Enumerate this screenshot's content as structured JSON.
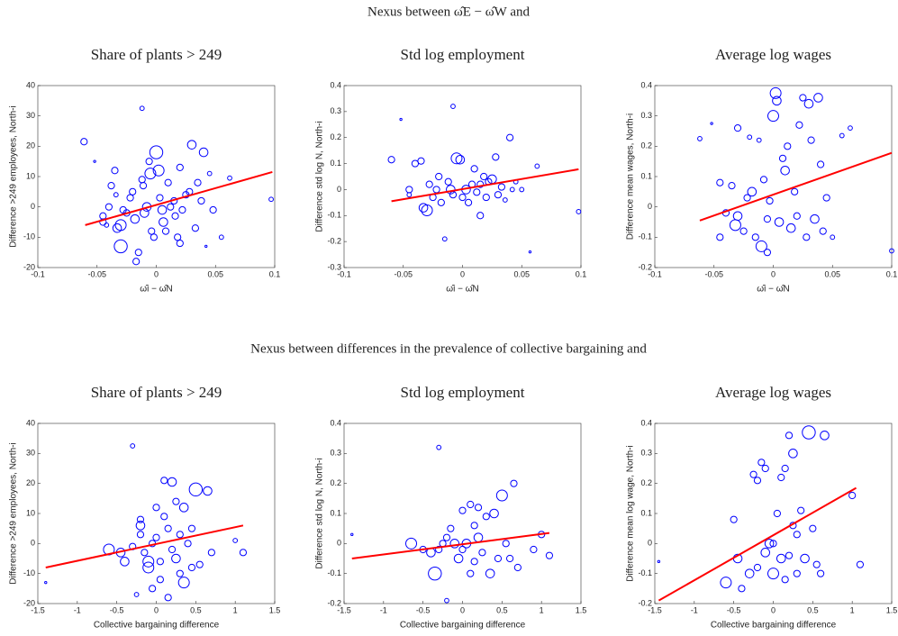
{
  "section_titles": [
    "Nexus between ω̂E − ω̂W and",
    "Nexus between differences in the prevalence of collective bargaining and"
  ],
  "chart_data": [
    {
      "type": "scatter",
      "title": "Share of plants > 249",
      "xlabel": "ω̂i − ω̂N",
      "ylabel": "Difference >249 employees, North-i",
      "color": "#0000ff",
      "x": [
        -0.061,
        -0.052,
        -0.012,
        -0.045,
        -0.045,
        -0.042,
        -0.038,
        -0.035,
        -0.034,
        -0.033,
        -0.03,
        -0.03,
        -0.028,
        -0.025,
        -0.022,
        -0.02,
        -0.018,
        -0.017,
        -0.015,
        -0.012,
        -0.011,
        -0.01,
        -0.008,
        -0.006,
        -0.005,
        -0.004,
        -0.002,
        0,
        0.002,
        0.003,
        0.005,
        0.006,
        0.008,
        0.01,
        0.012,
        0.015,
        0.016,
        0.018,
        0.02,
        0.022,
        0.025,
        0.028,
        0.03,
        0.033,
        0.035,
        0.038,
        0.04,
        0.042,
        0.045,
        0.048,
        0.055,
        0.062,
        0.097,
        0.02,
        -0.04
      ],
      "values": [
        21.5,
        15,
        32.5,
        -3,
        -5,
        -6,
        7,
        12,
        4,
        -7,
        -6,
        -13,
        -1,
        -2,
        3,
        5,
        -4,
        -18,
        -15,
        9,
        7,
        -2,
        0,
        15,
        11,
        -8,
        -10,
        18,
        12,
        3,
        -1,
        -5,
        -8,
        8,
        0,
        2,
        -3,
        -10,
        13,
        -1,
        4,
        5,
        20.5,
        -7,
        8,
        2,
        18,
        -13,
        11,
        -1,
        -10,
        9.5,
        2.5,
        -12,
        0
      ],
      "sizes": [
        3,
        1,
        2,
        3,
        3,
        2,
        3,
        3,
        2,
        4,
        5,
        6,
        3,
        3,
        3,
        3,
        4,
        3,
        3,
        3,
        3,
        4,
        4,
        3,
        5,
        3,
        3,
        6,
        5,
        3,
        4,
        4,
        3,
        3,
        3,
        3,
        3,
        3,
        3,
        3,
        3,
        3,
        4,
        3,
        3,
        3,
        4,
        1,
        2,
        3,
        2,
        2,
        2,
        3,
        3
      ],
      "fit_line": {
        "x": [
          -0.06,
          0.098
        ],
        "values": [
          -6,
          11.5
        ],
        "color": "#ff0000"
      },
      "xlim": [
        -0.1,
        0.1
      ],
      "xticks": [
        -0.1,
        -0.05,
        0,
        0.05,
        0.1
      ],
      "ylim": [
        -20,
        40
      ],
      "yticks": [
        -20,
        -10,
        0,
        10,
        20,
        30,
        40
      ]
    },
    {
      "type": "scatter",
      "title": "Std log employment",
      "xlabel": "ω̂i − ω̂N",
      "ylabel": "Difference std log N, North-i",
      "color": "#0000ff",
      "x": [
        -0.06,
        -0.052,
        -0.008,
        -0.045,
        -0.04,
        -0.035,
        -0.033,
        -0.03,
        -0.028,
        -0.025,
        -0.022,
        -0.02,
        -0.018,
        -0.015,
        -0.012,
        -0.01,
        -0.008,
        -0.005,
        -0.002,
        0,
        0.003,
        0.005,
        0.008,
        0.01,
        0.012,
        0.015,
        0.018,
        0.02,
        0.022,
        0.025,
        0.028,
        0.03,
        0.033,
        0.036,
        0.04,
        0.042,
        0.045,
        0.05,
        0.057,
        0.063,
        0.098,
        -0.045,
        0.015
      ],
      "values": [
        0.115,
        0.27,
        0.32,
        -0.02,
        0.1,
        0.11,
        -0.07,
        -0.08,
        0.02,
        -0.03,
        0,
        0.05,
        -0.05,
        -0.19,
        0.03,
        0,
        -0.02,
        0.12,
        0.115,
        -0.03,
        0,
        -0.05,
        0.02,
        0.08,
        -0.01,
        0.02,
        0.05,
        -0.03,
        0.03,
        0.04,
        0.125,
        -0.02,
        0.01,
        -0.04,
        0.2,
        0,
        0.03,
        0,
        -0.24,
        0.09,
        -0.085,
        0,
        -0.1
      ],
      "sizes": [
        3,
        1,
        2,
        2,
        3,
        3,
        4,
        5,
        3,
        3,
        3,
        3,
        3,
        2,
        3,
        4,
        3,
        5,
        4,
        3,
        4,
        3,
        3,
        3,
        3,
        3,
        3,
        3,
        3,
        4,
        3,
        3,
        3,
        2,
        3,
        2,
        2,
        2,
        1,
        2,
        2,
        3,
        3
      ],
      "fit_line": {
        "x": [
          -0.06,
          0.098
        ],
        "values": [
          -0.045,
          0.078
        ],
        "color": "#ff0000"
      },
      "xlim": [
        -0.1,
        0.1
      ],
      "xticks": [
        -0.1,
        -0.05,
        0,
        0.05,
        0.1
      ],
      "ylim": [
        -0.3,
        0.4
      ],
      "yticks": [
        -0.3,
        -0.2,
        -0.1,
        0,
        0.1,
        0.2,
        0.3,
        0.4
      ]
    },
    {
      "type": "scatter",
      "title": "Average log wages",
      "xlabel": "ω̂i − ω̂N",
      "ylabel": "Difference mean wages, North-i",
      "color": "#0000ff",
      "x": [
        -0.062,
        -0.052,
        -0.045,
        -0.045,
        -0.04,
        -0.035,
        -0.032,
        -0.03,
        -0.03,
        -0.025,
        -0.022,
        -0.02,
        -0.018,
        -0.015,
        -0.012,
        -0.01,
        -0.008,
        -0.005,
        -0.003,
        0,
        0.002,
        0.003,
        0.005,
        0.008,
        0.01,
        0.012,
        0.015,
        0.018,
        0.02,
        0.022,
        0.025,
        0.028,
        0.03,
        0.032,
        0.035,
        0.038,
        0.04,
        0.042,
        0.045,
        0.05,
        0.058,
        0.065,
        0.1,
        -0.005
      ],
      "values": [
        0.225,
        0.275,
        0.08,
        -0.1,
        -0.02,
        0.07,
        -0.06,
        -0.03,
        0.26,
        -0.08,
        0.03,
        0.23,
        0.05,
        -0.1,
        0.22,
        -0.13,
        0.09,
        -0.04,
        0.02,
        0.3,
        0.375,
        0.35,
        -0.05,
        0.16,
        0.12,
        0.2,
        -0.07,
        0.05,
        -0.03,
        0.27,
        0.36,
        -0.1,
        0.34,
        0.22,
        -0.04,
        0.36,
        0.14,
        -0.08,
        0.03,
        -0.1,
        0.235,
        0.26,
        -0.145,
        -0.15
      ],
      "sizes": [
        2,
        1,
        3,
        3,
        3,
        3,
        5,
        4,
        3,
        3,
        3,
        2,
        4,
        3,
        2,
        5,
        3,
        3,
        3,
        5,
        5,
        4,
        4,
        3,
        4,
        3,
        4,
        3,
        3,
        3,
        3,
        3,
        4,
        3,
        4,
        4,
        3,
        3,
        3,
        2,
        2,
        2,
        2,
        3
      ],
      "fit_line": {
        "x": [
          -0.062,
          0.1
        ],
        "values": [
          -0.045,
          0.178
        ],
        "color": "#ff0000"
      },
      "xlim": [
        -0.1,
        0.1
      ],
      "xticks": [
        -0.1,
        -0.05,
        0,
        0.05,
        0.1
      ],
      "ylim": [
        -0.2,
        0.4
      ],
      "yticks": [
        -0.2,
        -0.1,
        0,
        0.1,
        0.2,
        0.3,
        0.4
      ]
    },
    {
      "type": "scatter",
      "title": "Share of plants > 249",
      "xlabel": "Collective bargaining difference",
      "ylabel": "Difference >249 employees, North-i",
      "color": "#0000ff",
      "x": [
        -1.4,
        -0.3,
        -0.6,
        -0.45,
        -0.4,
        -0.3,
        -0.2,
        -0.2,
        -0.15,
        -0.1,
        -0.1,
        -0.05,
        0,
        0,
        0.05,
        0.1,
        0.1,
        0.15,
        0.2,
        0.2,
        0.25,
        0.25,
        0.3,
        0.35,
        0.35,
        0.4,
        0.45,
        0.5,
        0.55,
        0.65,
        0.7,
        1,
        1.1,
        -0.25,
        0.15,
        -0.05,
        0.3,
        0.45,
        -0.2,
        0.05
      ],
      "values": [
        -13,
        32.5,
        -2,
        -3,
        -6,
        -1,
        3,
        6,
        -3,
        -6,
        -8,
        0,
        2,
        12,
        -12,
        9,
        21,
        5,
        20.5,
        -2,
        14,
        -5,
        -10,
        -13,
        12,
        0,
        -8,
        18,
        -7,
        17.5,
        -3,
        1,
        -3,
        -17,
        -18,
        -15,
        3,
        5,
        8,
        -6
      ],
      "sizes": [
        1,
        2,
        5,
        4,
        4,
        3,
        3,
        4,
        3,
        5,
        5,
        3,
        3,
        3,
        3,
        3,
        3,
        3,
        4,
        3,
        3,
        4,
        3,
        5,
        4,
        3,
        3,
        6,
        3,
        4,
        3,
        2,
        3,
        2,
        3,
        3,
        3,
        3,
        3,
        3
      ],
      "fit_line": {
        "x": [
          -1.4,
          1.1
        ],
        "values": [
          -8,
          6
        ],
        "color": "#ff0000"
      },
      "xlim": [
        -1.5,
        1.5
      ],
      "xticks": [
        -1.5,
        -1,
        -0.5,
        0,
        0.5,
        1,
        1.5
      ],
      "ylim": [
        -20,
        40
      ],
      "yticks": [
        -20,
        -10,
        0,
        10,
        20,
        30,
        40
      ]
    },
    {
      "type": "scatter",
      "title": "Std log employment",
      "xlabel": "Collective bargaining difference",
      "ylabel": "Difference std log N, North-i",
      "color": "#0000ff",
      "x": [
        -1.4,
        -0.3,
        -0.65,
        -0.5,
        -0.4,
        -0.3,
        -0.25,
        -0.2,
        -0.2,
        -0.15,
        -0.1,
        -0.05,
        0,
        0,
        0.05,
        0.1,
        0.1,
        0.15,
        0.2,
        0.2,
        0.25,
        0.3,
        0.35,
        0.4,
        0.45,
        0.5,
        0.55,
        0.6,
        0.65,
        0.7,
        0.9,
        1,
        1.1,
        0.15,
        -0.35
      ],
      "values": [
        0.03,
        0.32,
        0,
        -0.02,
        -0.03,
        -0.02,
        0,
        0.02,
        -0.19,
        0.05,
        0,
        -0.05,
        0.11,
        -0.02,
        0,
        0.13,
        -0.1,
        0.06,
        0.02,
        0.12,
        -0.03,
        0.09,
        -0.1,
        0.1,
        -0.05,
        0.16,
        0,
        -0.05,
        0.2,
        -0.08,
        -0.02,
        0.03,
        -0.04,
        -0.06,
        -0.1
      ],
      "sizes": [
        1,
        2,
        5,
        3,
        4,
        3,
        3,
        3,
        2,
        3,
        4,
        4,
        3,
        3,
        4,
        3,
        3,
        3,
        4,
        3,
        3,
        3,
        4,
        4,
        3,
        5,
        3,
        3,
        3,
        3,
        3,
        3,
        3,
        3,
        6
      ],
      "fit_line": {
        "x": [
          -1.4,
          1.1
        ],
        "values": [
          -0.05,
          0.035
        ],
        "color": "#ff0000"
      },
      "xlim": [
        -1.5,
        1.5
      ],
      "xticks": [
        -1.5,
        -1,
        -0.5,
        0,
        0.5,
        1,
        1.5
      ],
      "ylim": [
        -0.2,
        0.4
      ],
      "yticks": [
        -0.2,
        -0.1,
        0,
        0.1,
        0.2,
        0.3,
        0.4
      ]
    },
    {
      "type": "scatter",
      "title": "Average log wages",
      "xlabel": "Collective bargaining difference",
      "ylabel": "Difference mean log wage, North-i",
      "color": "#0000ff",
      "x": [
        -1.45,
        -0.5,
        -0.45,
        -0.4,
        -0.6,
        -0.3,
        -0.25,
        -0.2,
        -0.15,
        -0.1,
        -0.1,
        -0.05,
        0,
        0,
        0.05,
        0.1,
        0.1,
        0.15,
        0.2,
        0.2,
        0.25,
        0.25,
        0.3,
        0.3,
        0.35,
        0.4,
        0.45,
        0.5,
        0.55,
        0.6,
        0.65,
        1,
        1.1,
        0.15,
        -0.2
      ],
      "values": [
        -0.06,
        0.08,
        -0.05,
        -0.15,
        -0.13,
        -0.1,
        0.23,
        0.21,
        0.27,
        0.25,
        -0.03,
        0,
        0,
        -0.1,
        0.1,
        0.22,
        -0.05,
        0.25,
        0.36,
        -0.04,
        0.3,
        0.06,
        0.03,
        -0.1,
        0.11,
        -0.05,
        0.37,
        0.05,
        -0.07,
        -0.1,
        0.36,
        0.16,
        -0.07,
        -0.12,
        -0.08
      ],
      "sizes": [
        1,
        3,
        4,
        3,
        5,
        4,
        3,
        3,
        3,
        3,
        4,
        4,
        3,
        5,
        3,
        3,
        4,
        3,
        3,
        3,
        4,
        3,
        3,
        3,
        3,
        4,
        6,
        3,
        3,
        3,
        4,
        3,
        3,
        3,
        3
      ],
      "fit_line": {
        "x": [
          -1.45,
          1.05
        ],
        "values": [
          -0.19,
          0.185
        ],
        "color": "#ff0000"
      },
      "xlim": [
        -1.5,
        1.5
      ],
      "xticks": [
        -1.5,
        -1,
        -0.5,
        0,
        0.5,
        1,
        1.5
      ],
      "ylim": [
        -0.2,
        0.4
      ],
      "yticks": [
        -0.2,
        -0.1,
        0,
        0.1,
        0.2,
        0.3,
        0.4
      ]
    }
  ]
}
